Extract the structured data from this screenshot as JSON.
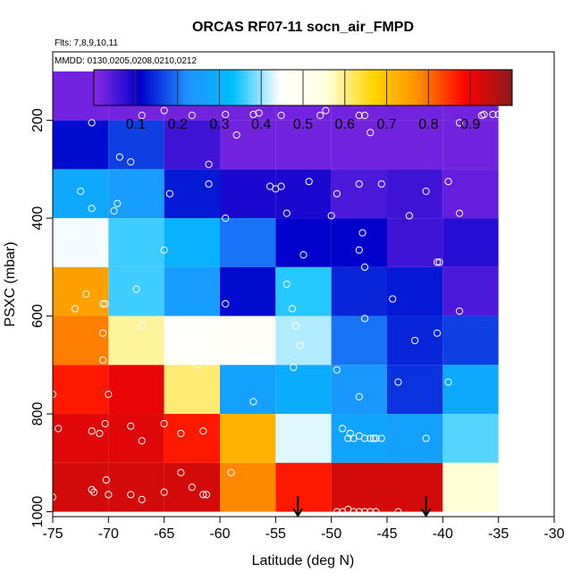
{
  "chart_data": {
    "type": "heatmap",
    "title": "ORCAS RF07-11 socn_air_FMPD",
    "subtitle_flights": "Flts: 7,8,9,10,11",
    "subtitle_dates": "MMDD: 0130,0205,0208,0210,0212",
    "xlabel": "Latitude (deg N)",
    "ylabel": "PSXC (mbar)",
    "xlim": [
      -75,
      -30
    ],
    "ylim": [
      1010,
      60
    ],
    "y_reversed": true,
    "x_ticks": [
      "-75",
      "-70",
      "-65",
      "-60",
      "-55",
      "-50",
      "-45",
      "-40",
      "-35",
      "-30"
    ],
    "y_ticks": [
      "200",
      "400",
      "600",
      "800",
      "1000"
    ],
    "colorbar": {
      "range": [
        0,
        1
      ],
      "ticks": [
        "0.1",
        "0.2",
        "0.3",
        "0.4",
        "0.5",
        "0.6",
        "0.7",
        "0.8",
        "0.9"
      ],
      "colors": [
        "#8a2be2",
        "#0000cd",
        "#1e90ff",
        "#00bfff",
        "#ffffff",
        "#ffffe0",
        "#ffd700",
        "#ff8c00",
        "#ff0000",
        "#8b1a1a"
      ]
    },
    "x_bins": [
      -75,
      -70,
      -65,
      -60,
      -55,
      -50,
      -45,
      -40,
      -35
    ],
    "p_bins": [
      100,
      200,
      300,
      400,
      500,
      600,
      700,
      800,
      900,
      1000
    ],
    "cells": [
      [
        0.02,
        0.02,
        0.02,
        0.02,
        0.02,
        0.02,
        0.02,
        0.02
      ],
      [
        0.12,
        0.16,
        0.06,
        0.02,
        0.02,
        0.02,
        0.02,
        0.02
      ],
      [
        0.28,
        0.25,
        0.13,
        0.09,
        0.09,
        0.05,
        0.06,
        0.03
      ],
      [
        0.44,
        0.36,
        0.3,
        0.2,
        0.11,
        0.11,
        0.06,
        0.08
      ],
      [
        0.75,
        0.36,
        0.25,
        0.12,
        0.35,
        0.14,
        0.13,
        0.05
      ],
      [
        0.79,
        0.59,
        0.46,
        0.47,
        0.41,
        0.2,
        0.14,
        0.16
      ],
      [
        0.87,
        0.91,
        0.61,
        0.26,
        0.29,
        0.24,
        0.15,
        0.28
      ],
      [
        0.92,
        0.92,
        0.87,
        0.72,
        0.43,
        0.27,
        0.26,
        0.37
      ],
      [
        0.93,
        0.93,
        0.93,
        0.78,
        0.87,
        0.93,
        0.93,
        0.56
      ]
    ],
    "arrows_x": [
      -53,
      -41.5
    ],
    "points": [
      [
        -71.5,
        205
      ],
      [
        -67,
        190
      ],
      [
        -65,
        180
      ],
      [
        -62.5,
        190
      ],
      [
        -59.5,
        188
      ],
      [
        -57,
        188
      ],
      [
        -56.5,
        185
      ],
      [
        -54.5,
        190
      ],
      [
        -51,
        190
      ],
      [
        -50.5,
        180
      ],
      [
        -47.5,
        190
      ],
      [
        -47,
        190
      ],
      [
        -38.5,
        205
      ],
      [
        -36.5,
        190
      ],
      [
        -36.3,
        188
      ],
      [
        -35.5,
        188
      ],
      [
        -35,
        188
      ],
      [
        -69,
        275
      ],
      [
        -68,
        285
      ],
      [
        -61,
        290
      ],
      [
        -58.5,
        230
      ],
      [
        -46.5,
        225
      ],
      [
        -72.5,
        345
      ],
      [
        -71.5,
        380
      ],
      [
        -69.5,
        385
      ],
      [
        -69.2,
        370
      ],
      [
        -64.5,
        350
      ],
      [
        -61,
        330
      ],
      [
        -59.5,
        400
      ],
      [
        -55.5,
        335
      ],
      [
        -55,
        340
      ],
      [
        -54.5,
        335
      ],
      [
        -54,
        390
      ],
      [
        -52,
        325
      ],
      [
        -50,
        395
      ],
      [
        -49.5,
        350
      ],
      [
        -47.5,
        330
      ],
      [
        -45.5,
        330
      ],
      [
        -43,
        395
      ],
      [
        -41.5,
        345
      ],
      [
        -39.5,
        325
      ],
      [
        -38.5,
        390
      ],
      [
        -73,
        435
      ],
      [
        -70.5,
        470
      ],
      [
        -65,
        465
      ],
      [
        -52.5,
        475
      ],
      [
        -47.5,
        465
      ],
      [
        -47.2,
        430
      ],
      [
        -47,
        500
      ],
      [
        -40.5,
        490
      ],
      [
        -40.3,
        490
      ],
      [
        -72,
        555
      ],
      [
        -73,
        585
      ],
      [
        -70.5,
        575
      ],
      [
        -70.3,
        575
      ],
      [
        -67.5,
        545
      ],
      [
        -59.5,
        575
      ],
      [
        -54,
        535
      ],
      [
        -53.5,
        585
      ],
      [
        -47,
        605
      ],
      [
        -44.5,
        565
      ],
      [
        -38.5,
        590
      ],
      [
        -70.5,
        635
      ],
      [
        -67,
        620
      ],
      [
        -70.5,
        690
      ],
      [
        -62,
        700
      ],
      [
        -61.5,
        680
      ],
      [
        -53.2,
        620
      ],
      [
        -52.8,
        660
      ],
      [
        -53.4,
        705
      ],
      [
        -49.5,
        710
      ],
      [
        -42.5,
        650
      ],
      [
        -40.5,
        635
      ],
      [
        -75,
        760
      ],
      [
        -70,
        760
      ],
      [
        -57,
        775
      ],
      [
        -47.5,
        765
      ],
      [
        -44,
        735
      ],
      [
        -39.5,
        735
      ],
      [
        -74.5,
        830
      ],
      [
        -71.5,
        835
      ],
      [
        -70.8,
        840
      ],
      [
        -70.3,
        820
      ],
      [
        -68,
        825
      ],
      [
        -67,
        855
      ],
      [
        -65,
        820
      ],
      [
        -63.5,
        840
      ],
      [
        -61.5,
        835
      ],
      [
        -49,
        830
      ],
      [
        -48.5,
        850
      ],
      [
        -48,
        850
      ],
      [
        -47.5,
        845
      ],
      [
        -47,
        850
      ],
      [
        -46.5,
        850
      ],
      [
        -46.2,
        850
      ],
      [
        -46,
        850
      ],
      [
        -45.5,
        850
      ],
      [
        -41.5,
        850
      ],
      [
        -48.3,
        840
      ],
      [
        -75,
        970
      ],
      [
        -71.5,
        955
      ],
      [
        -71.3,
        960
      ],
      [
        -70,
        965
      ],
      [
        -70.2,
        935
      ],
      [
        -68,
        965
      ],
      [
        -67,
        975
      ],
      [
        -65,
        960
      ],
      [
        -63.5,
        920
      ],
      [
        -62.5,
        950
      ],
      [
        -61.5,
        965
      ],
      [
        -61.2,
        965
      ],
      [
        -59,
        920
      ],
      [
        -49.5,
        1000
      ],
      [
        -49,
        1000
      ],
      [
        -48.5,
        995
      ],
      [
        -48,
        1000
      ],
      [
        -47.5,
        1000
      ],
      [
        -47,
        1000
      ],
      [
        -46.5,
        1000
      ],
      [
        -46,
        1000
      ],
      [
        -44,
        1000
      ]
    ]
  }
}
